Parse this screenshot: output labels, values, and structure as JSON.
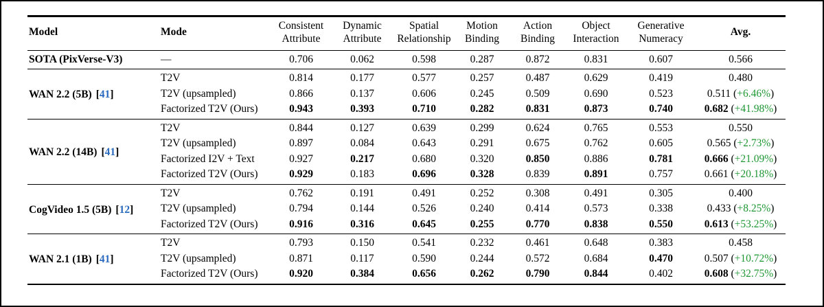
{
  "table": {
    "colors": {
      "citation_blue": "#2a6bc0",
      "delta_green": "#1e9733",
      "rule_black": "#000000"
    },
    "columns": [
      {
        "key": "model",
        "label": "Model",
        "bold": true,
        "align": "left"
      },
      {
        "key": "mode",
        "label": "Mode",
        "bold": true,
        "align": "left"
      },
      {
        "key": "consistent-attribute",
        "label": "Consistent\nAttribute",
        "bold": false
      },
      {
        "key": "dynamic-attribute",
        "label": "Dynamic\nAttribute",
        "bold": false
      },
      {
        "key": "spatial-relationship",
        "label": "Spatial\nRelationship",
        "bold": false
      },
      {
        "key": "motion-binding",
        "label": "Motion\nBinding",
        "bold": false
      },
      {
        "key": "action-binding",
        "label": "Action\nBinding",
        "bold": false
      },
      {
        "key": "object-interaction",
        "label": "Object\nInteraction",
        "bold": false
      },
      {
        "key": "generative-numeracy",
        "label": "Generative\nNumeracy",
        "bold": false
      },
      {
        "key": "avg",
        "label": "Avg.",
        "bold": true
      }
    ],
    "groups": [
      {
        "model": "SOTA (PixVerse-V3)",
        "citation": null,
        "sota": true,
        "rows": [
          {
            "mode": "—",
            "metrics": [
              "0.706",
              "0.062",
              "0.598",
              "0.287",
              "0.872",
              "0.831",
              "0.607"
            ],
            "bold": [
              false,
              false,
              false,
              false,
              false,
              false,
              false
            ],
            "avg": "0.566",
            "avg_bold": false,
            "avg_pct": null
          }
        ]
      },
      {
        "model": "WAN 2.2 (5B)",
        "citation": "41",
        "sota": false,
        "rows": [
          {
            "mode": "T2V",
            "metrics": [
              "0.814",
              "0.177",
              "0.577",
              "0.257",
              "0.487",
              "0.629",
              "0.419"
            ],
            "bold": [
              false,
              false,
              false,
              false,
              false,
              false,
              false
            ],
            "avg": "0.480",
            "avg_bold": false,
            "avg_pct": null
          },
          {
            "mode": "T2V (upsampled)",
            "metrics": [
              "0.866",
              "0.137",
              "0.606",
              "0.245",
              "0.509",
              "0.690",
              "0.523"
            ],
            "bold": [
              false,
              false,
              false,
              false,
              false,
              false,
              false
            ],
            "avg": "0.511",
            "avg_bold": false,
            "avg_pct": "+6.46%"
          },
          {
            "mode": "Factorized T2V (Ours)",
            "metrics": [
              "0.943",
              "0.393",
              "0.710",
              "0.282",
              "0.831",
              "0.873",
              "0.740"
            ],
            "bold": [
              true,
              true,
              true,
              true,
              true,
              true,
              true
            ],
            "avg": "0.682",
            "avg_bold": true,
            "avg_pct": "+41.98%"
          }
        ]
      },
      {
        "model": "WAN 2.2 (14B)",
        "citation": "41",
        "sota": false,
        "rows": [
          {
            "mode": "T2V",
            "metrics": [
              "0.844",
              "0.127",
              "0.639",
              "0.299",
              "0.624",
              "0.765",
              "0.553"
            ],
            "bold": [
              false,
              false,
              false,
              false,
              false,
              false,
              false
            ],
            "avg": "0.550",
            "avg_bold": false,
            "avg_pct": null
          },
          {
            "mode": "T2V (upsampled)",
            "metrics": [
              "0.897",
              "0.084",
              "0.643",
              "0.291",
              "0.675",
              "0.762",
              "0.605"
            ],
            "bold": [
              false,
              false,
              false,
              false,
              false,
              false,
              false
            ],
            "avg": "0.565",
            "avg_bold": false,
            "avg_pct": "+2.73%"
          },
          {
            "mode": "Factorized I2V + Text",
            "metrics": [
              "0.927",
              "0.217",
              "0.680",
              "0.320",
              "0.850",
              "0.886",
              "0.781"
            ],
            "bold": [
              false,
              true,
              false,
              false,
              true,
              false,
              true
            ],
            "avg": "0.666",
            "avg_bold": true,
            "avg_pct": "+21.09%"
          },
          {
            "mode": "Factorized T2V (Ours)",
            "metrics": [
              "0.929",
              "0.183",
              "0.696",
              "0.328",
              "0.839",
              "0.891",
              "0.757"
            ],
            "bold": [
              true,
              false,
              true,
              true,
              false,
              true,
              false
            ],
            "avg": "0.661",
            "avg_bold": false,
            "avg_pct": "+20.18%"
          }
        ]
      },
      {
        "model": "CogVideo 1.5 (5B)",
        "citation": "12",
        "sota": false,
        "rows": [
          {
            "mode": "T2V",
            "metrics": [
              "0.762",
              "0.191",
              "0.491",
              "0.252",
              "0.308",
              "0.491",
              "0.305"
            ],
            "bold": [
              false,
              false,
              false,
              false,
              false,
              false,
              false
            ],
            "avg": "0.400",
            "avg_bold": false,
            "avg_pct": null
          },
          {
            "mode": "T2V (upsampled)",
            "metrics": [
              "0.794",
              "0.144",
              "0.526",
              "0.240",
              "0.414",
              "0.573",
              "0.338"
            ],
            "bold": [
              false,
              false,
              false,
              false,
              false,
              false,
              false
            ],
            "avg": "0.433",
            "avg_bold": false,
            "avg_pct": "+8.25%"
          },
          {
            "mode": "Factorized T2V (Ours)",
            "metrics": [
              "0.916",
              "0.316",
              "0.645",
              "0.255",
              "0.770",
              "0.838",
              "0.550"
            ],
            "bold": [
              true,
              true,
              true,
              true,
              true,
              true,
              true
            ],
            "avg": "0.613",
            "avg_bold": true,
            "avg_pct": "+53.25%"
          }
        ]
      },
      {
        "model": "WAN 2.1 (1B)",
        "citation": "41",
        "sota": false,
        "rows": [
          {
            "mode": "T2V",
            "metrics": [
              "0.793",
              "0.150",
              "0.541",
              "0.232",
              "0.461",
              "0.648",
              "0.383"
            ],
            "bold": [
              false,
              false,
              false,
              false,
              false,
              false,
              false
            ],
            "avg": "0.458",
            "avg_bold": false,
            "avg_pct": null
          },
          {
            "mode": "T2V (upsampled)",
            "metrics": [
              "0.871",
              "0.117",
              "0.590",
              "0.244",
              "0.572",
              "0.684",
              "0.470"
            ],
            "bold": [
              false,
              false,
              false,
              false,
              false,
              false,
              true
            ],
            "avg": "0.507",
            "avg_bold": false,
            "avg_pct": "+10.72%"
          },
          {
            "mode": "Factorized T2V (Ours)",
            "metrics": [
              "0.920",
              "0.384",
              "0.656",
              "0.262",
              "0.790",
              "0.844",
              "0.402"
            ],
            "bold": [
              true,
              true,
              true,
              true,
              true,
              true,
              false
            ],
            "avg": "0.608",
            "avg_bold": true,
            "avg_pct": "+32.75%"
          }
        ]
      }
    ]
  }
}
